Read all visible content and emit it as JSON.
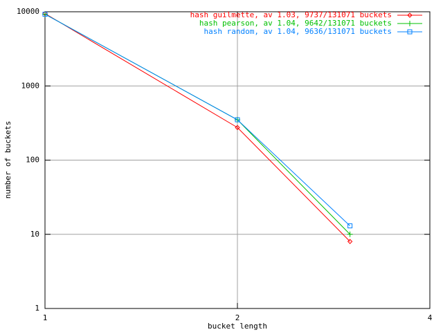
{
  "chart_data": {
    "type": "line",
    "x_label": "bucket length",
    "y_label": "number of buckets",
    "x": [
      1,
      2,
      3
    ],
    "series": [
      {
        "name": "hash guilmette, av 1.03, 9737/131071 buckets",
        "color": "#ff0000",
        "marker": "diamond",
        "values": [
          9454,
          275,
          8
        ]
      },
      {
        "name": "hash pearson, av 1.04, 9642/131071 buckets",
        "color": "#00c000",
        "marker": "plus",
        "values": [
          9282,
          350,
          10
        ]
      },
      {
        "name": "hash random, av 1.04, 9636/131071 buckets",
        "color": "#0080ff",
        "marker": "square",
        "values": [
          9273,
          350,
          13
        ]
      }
    ],
    "xlim": [
      1,
      4
    ],
    "ylim": [
      1,
      10000
    ],
    "xlog": true,
    "ylog": true,
    "xticks": [
      1,
      2,
      4
    ],
    "yticks": [
      1,
      10,
      100,
      1000,
      10000
    ],
    "grid": true,
    "legend": "top-right"
  }
}
